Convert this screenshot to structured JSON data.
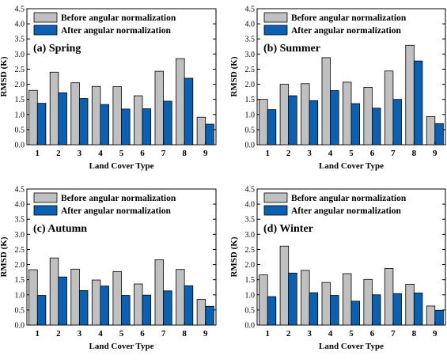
{
  "chart_data": [
    {
      "type": "bar",
      "title": "(a) Spring",
      "xlabel": "Land Cover Type",
      "ylabel": "RMSD (K)",
      "categories": [
        "1",
        "2",
        "3",
        "4",
        "5",
        "6",
        "7",
        "8",
        "9"
      ],
      "yticks": [
        "0.0",
        "0.5",
        "1.0",
        "1.5",
        "2.0",
        "2.5",
        "3.0",
        "3.5",
        "4.0",
        "4.5"
      ],
      "ylim": [
        0,
        4.5
      ],
      "legend_position": "top-left",
      "series": [
        {
          "name": "Before angular normalization",
          "values": [
            1.8,
            2.4,
            2.05,
            1.93,
            1.92,
            1.62,
            2.43,
            2.85,
            0.91
          ]
        },
        {
          "name": "After angular normalization",
          "values": [
            1.37,
            1.72,
            1.53,
            1.33,
            1.18,
            1.19,
            1.44,
            2.2,
            0.68
          ]
        }
      ]
    },
    {
      "type": "bar",
      "title": "(b) Summer",
      "xlabel": "Land Cover Type",
      "ylabel": "RMSD (K)",
      "categories": [
        "1",
        "2",
        "3",
        "4",
        "5",
        "6",
        "7",
        "8",
        "9"
      ],
      "yticks": [
        "0.0",
        "0.5",
        "1.0",
        "1.5",
        "2.0",
        "2.5",
        "3.0",
        "3.5",
        "4.0",
        "4.5"
      ],
      "ylim": [
        0,
        4.5
      ],
      "legend_position": "top-left",
      "series": [
        {
          "name": "Before angular normalization",
          "values": [
            1.5,
            2.0,
            2.02,
            2.88,
            2.07,
            1.9,
            2.44,
            3.29,
            0.93
          ]
        },
        {
          "name": "After angular normalization",
          "values": [
            1.16,
            1.62,
            1.46,
            1.79,
            1.36,
            1.21,
            1.5,
            2.77,
            0.7
          ]
        }
      ]
    },
    {
      "type": "bar",
      "title": "(c) Autumn",
      "xlabel": "Land Cover Type",
      "ylabel": "RMSD (K)",
      "categories": [
        "1",
        "2",
        "3",
        "4",
        "5",
        "6",
        "7",
        "8",
        "9"
      ],
      "yticks": [
        "0.0",
        "0.5",
        "1.0",
        "1.5",
        "2.0",
        "2.5",
        "3.0",
        "3.5",
        "4.0",
        "4.5"
      ],
      "ylim": [
        0,
        4.5
      ],
      "legend_position": "top-left",
      "series": [
        {
          "name": "Before angular normalization",
          "values": [
            1.83,
            2.22,
            1.85,
            1.49,
            1.77,
            1.36,
            2.16,
            1.84,
            0.85
          ]
        },
        {
          "name": "After angular normalization",
          "values": [
            0.98,
            1.59,
            1.14,
            1.29,
            0.98,
            0.99,
            1.13,
            1.3,
            0.62
          ]
        }
      ]
    },
    {
      "type": "bar",
      "title": "(d) Winter",
      "xlabel": "Land Cover Type",
      "ylabel": "RMSD (K)",
      "categories": [
        "1",
        "2",
        "3",
        "4",
        "5",
        "6",
        "7",
        "8",
        "9"
      ],
      "yticks": [
        "0.0",
        "0.5",
        "1.0",
        "1.5",
        "2.0",
        "2.5",
        "3.0",
        "3.5",
        "4.0",
        "4.5"
      ],
      "ylim": [
        0,
        4.5
      ],
      "legend_position": "top-left",
      "series": [
        {
          "name": "Before angular normalization",
          "values": [
            1.66,
            2.61,
            1.81,
            1.41,
            1.7,
            1.51,
            1.87,
            1.35,
            0.63
          ]
        },
        {
          "name": "After angular normalization",
          "values": [
            0.94,
            1.72,
            1.07,
            0.98,
            0.79,
            1.0,
            1.04,
            1.06,
            0.49
          ]
        }
      ]
    }
  ],
  "colors": {
    "before": "#c0c0c0",
    "after": "#0a61b4",
    "edge": "#000000"
  }
}
